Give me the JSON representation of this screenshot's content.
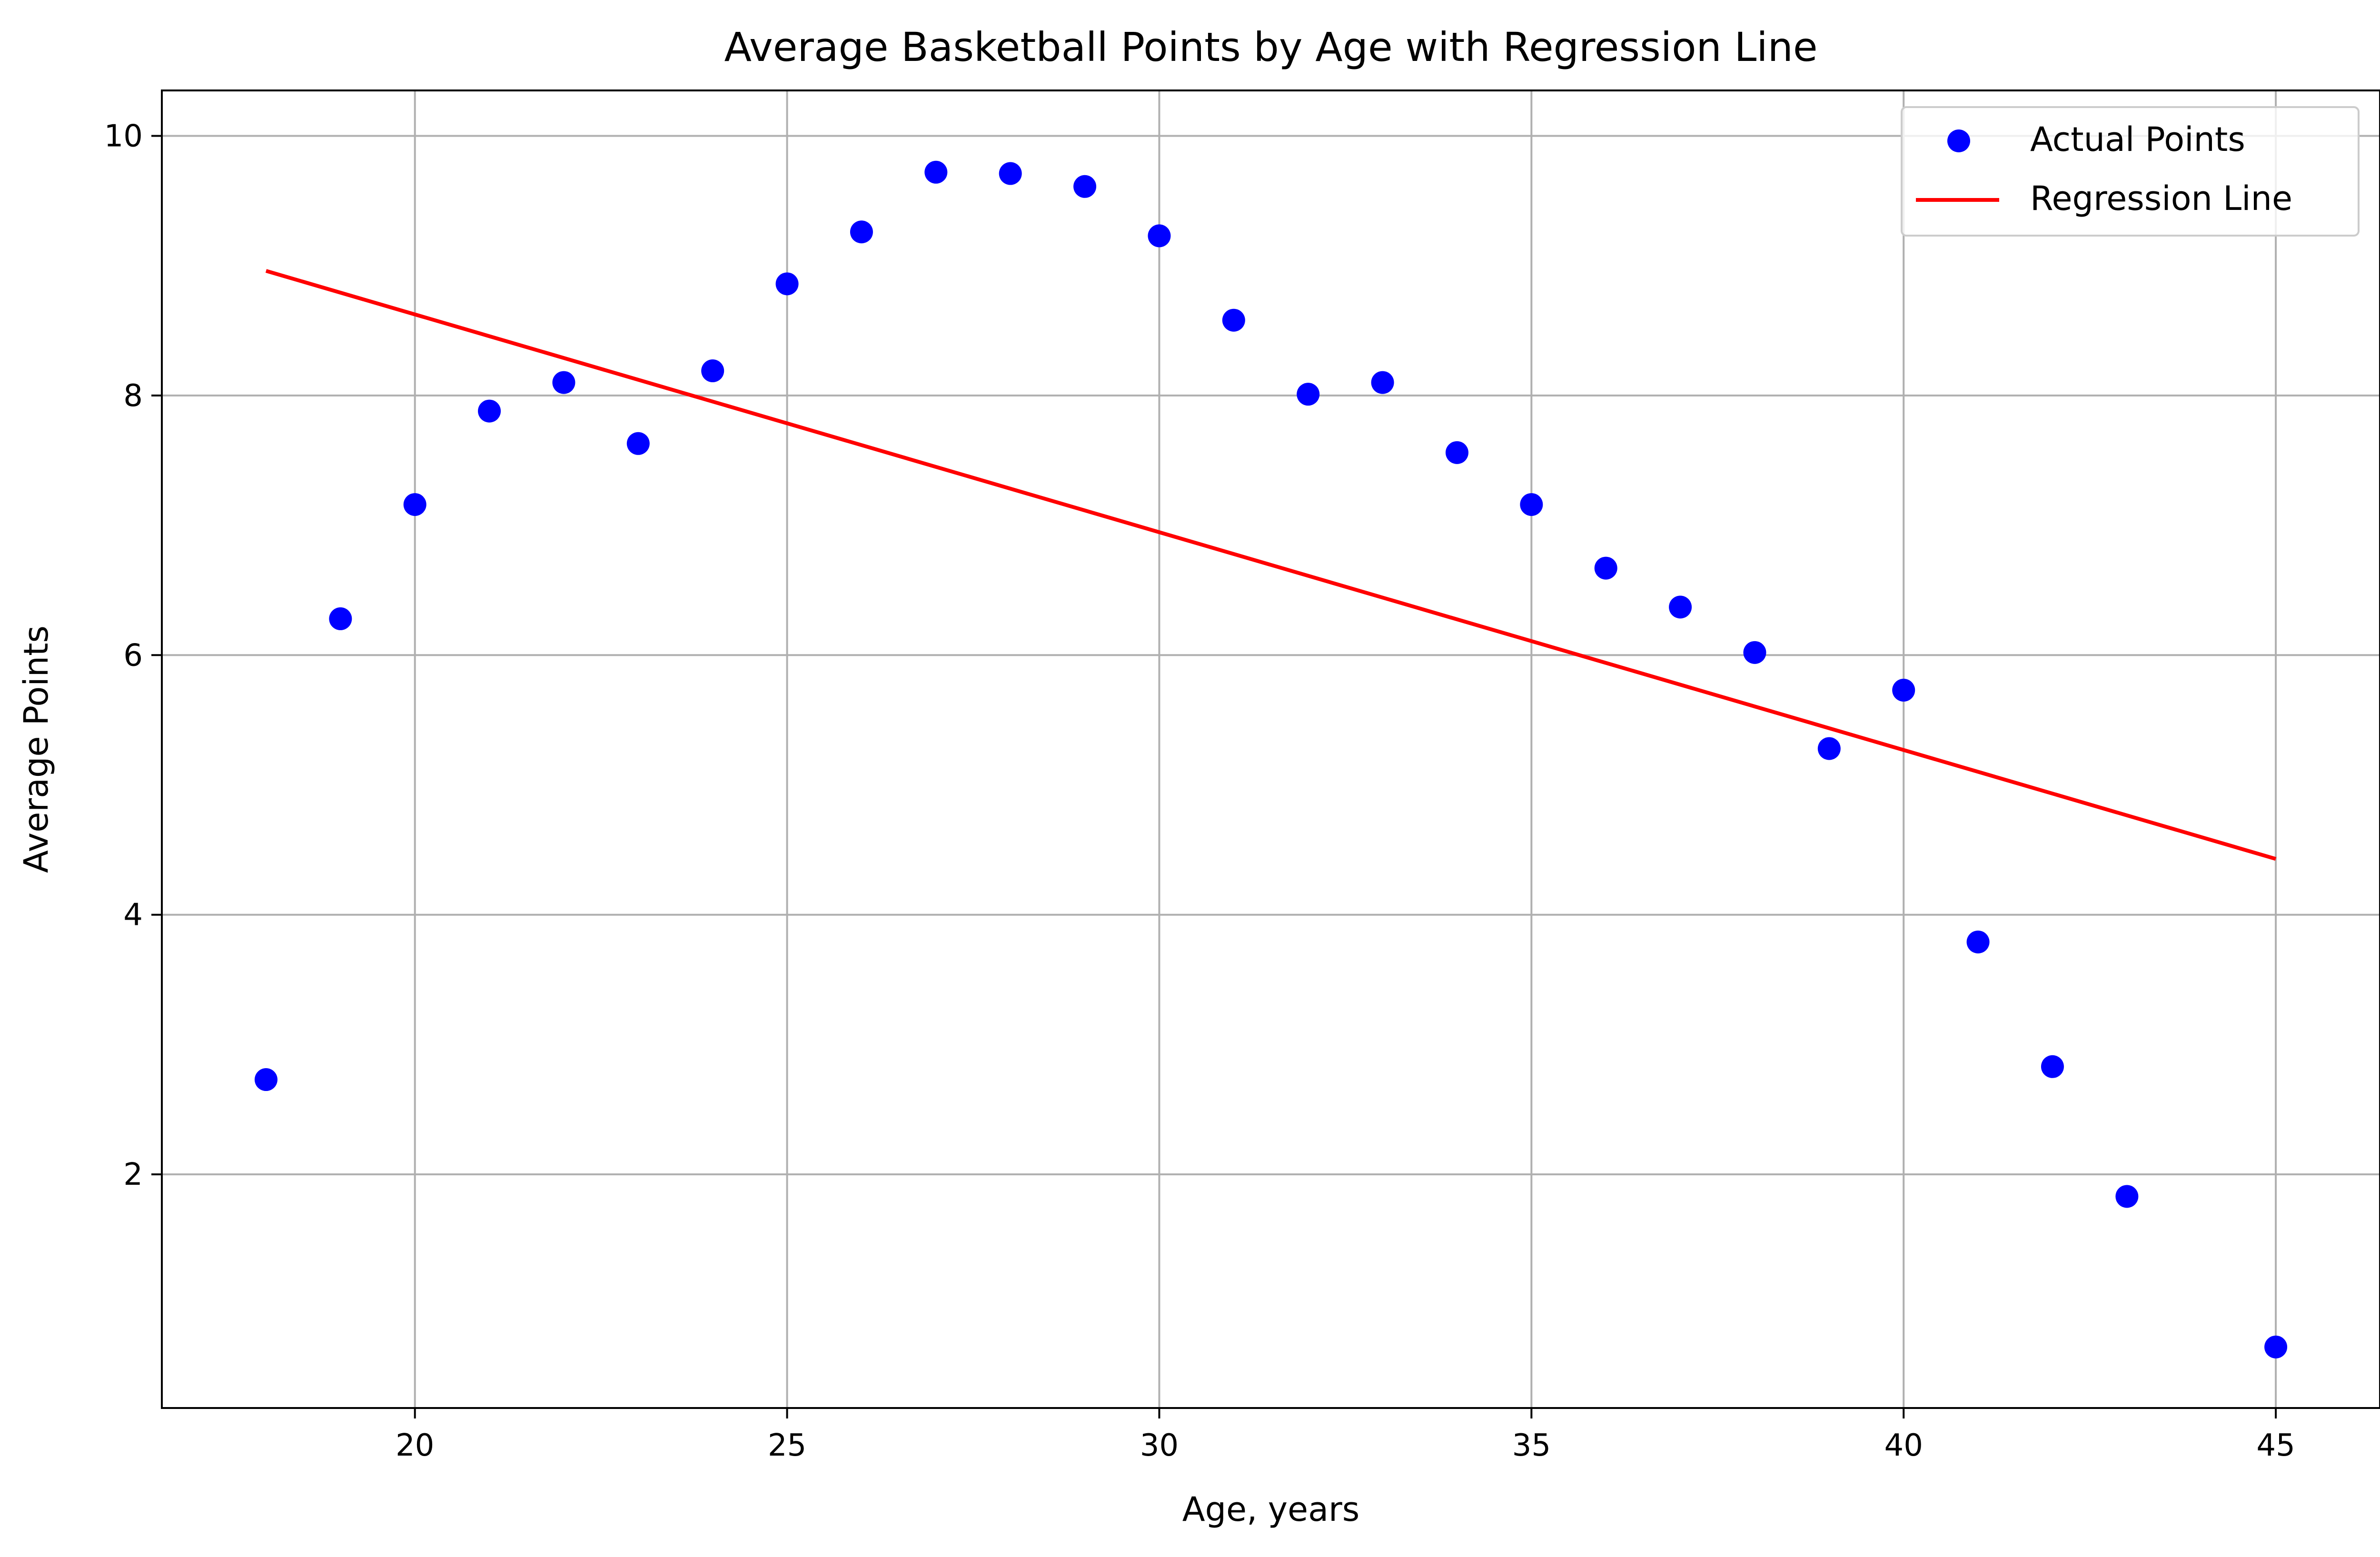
{
  "chart_data": {
    "type": "scatter",
    "title": "Average Basketball Points by Age with Regression Line",
    "xlabel": "Age, years",
    "ylabel": "Average Points",
    "xlim": [
      16.6,
      46.4
    ],
    "ylim": [
      0.2,
      10.35
    ],
    "xticks": [
      20,
      25,
      30,
      35,
      40,
      45
    ],
    "yticks": [
      2,
      4,
      6,
      8,
      10
    ],
    "grid": true,
    "legend_position": "top-right",
    "series": [
      {
        "name": "Actual Points",
        "kind": "scatter",
        "color": "#0000ff",
        "points": [
          [
            18,
            2.73
          ],
          [
            19,
            6.28
          ],
          [
            20,
            7.16
          ],
          [
            21,
            7.88
          ],
          [
            22,
            8.1
          ],
          [
            23,
            7.63
          ],
          [
            24,
            8.19
          ],
          [
            25,
            8.86
          ],
          [
            26,
            9.26
          ],
          [
            27,
            9.72
          ],
          [
            28,
            9.71
          ],
          [
            29,
            9.61
          ],
          [
            30,
            9.23
          ],
          [
            31,
            8.58
          ],
          [
            32,
            8.01
          ],
          [
            33,
            8.1
          ],
          [
            34,
            7.56
          ],
          [
            35,
            7.16
          ],
          [
            36,
            6.67
          ],
          [
            37,
            6.37
          ],
          [
            38,
            6.02
          ],
          [
            39,
            5.28
          ],
          [
            40,
            5.73
          ],
          [
            41,
            3.79
          ],
          [
            42,
            2.83
          ],
          [
            43,
            1.83
          ],
          [
            45,
            0.67
          ]
        ]
      },
      {
        "name": "Regression Line",
        "kind": "line",
        "color": "#ff0000",
        "points": [
          [
            18,
            8.96
          ],
          [
            45,
            4.43
          ]
        ]
      }
    ]
  }
}
